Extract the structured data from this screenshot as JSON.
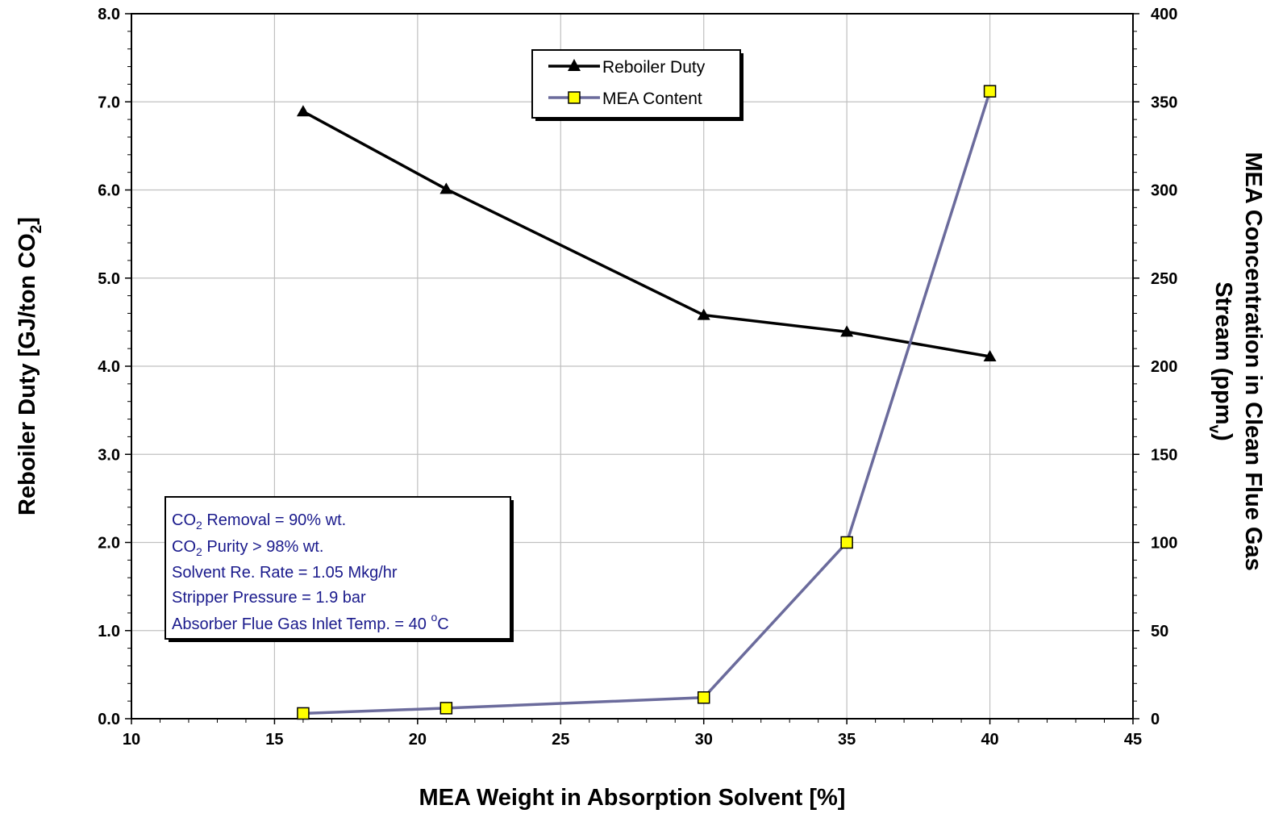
{
  "chart_data": {
    "type": "line",
    "x": [
      16,
      21,
      30,
      35,
      40
    ],
    "xlabel": "MEA Weight in Absorption Solvent [%]",
    "xlim": [
      10,
      45
    ],
    "xticks": [
      "10",
      "15",
      "20",
      "25",
      "30",
      "35",
      "40",
      "45"
    ],
    "ylabel": {
      "main": "Reboiler Duty [GJ/ton CO",
      "sub": "2",
      "end": "]"
    },
    "ylim": [
      0,
      8
    ],
    "yticks": [
      "0.0",
      "1.0",
      "2.0",
      "3.0",
      "4.0",
      "5.0",
      "6.0",
      "7.0",
      "8.0"
    ],
    "y2label": {
      "line1": "MEA Concentration in Clean Flue Gas",
      "line2_main": "Stream (ppm",
      "line2_sub": "v",
      "line2_end": ")"
    },
    "y2lim": [
      0,
      400
    ],
    "y2ticks": [
      "0",
      "50",
      "100",
      "150",
      "200",
      "250",
      "300",
      "350",
      "400"
    ],
    "grid": true,
    "legend_position": "top-center",
    "series": [
      {
        "name": "Reboiler Duty",
        "axis": "left",
        "marker": "triangle",
        "color": "#000000",
        "values": [
          6.89,
          6.01,
          4.58,
          4.39,
          4.11
        ]
      },
      {
        "name": "MEA Content",
        "axis": "right",
        "marker": "square",
        "color": "#6b6b9c",
        "marker_fill": "#ffff00",
        "values": [
          3,
          6,
          12,
          100,
          356
        ]
      }
    ],
    "annotation": {
      "lines": [
        {
          "pre": "CO",
          "sub": "2",
          "post": " Removal = 90% wt."
        },
        {
          "pre": "CO",
          "sub": "2",
          "post": " Purity > 98% wt."
        },
        {
          "pre": "Solvent Re. Rate = 1.05 Mkg/hr"
        },
        {
          "pre": "Stripper Pressure = 1.9 bar"
        },
        {
          "pre": "Absorber Flue Gas Inlet Temp. = 40 ",
          "sup": "o",
          "post": "C"
        }
      ]
    }
  }
}
